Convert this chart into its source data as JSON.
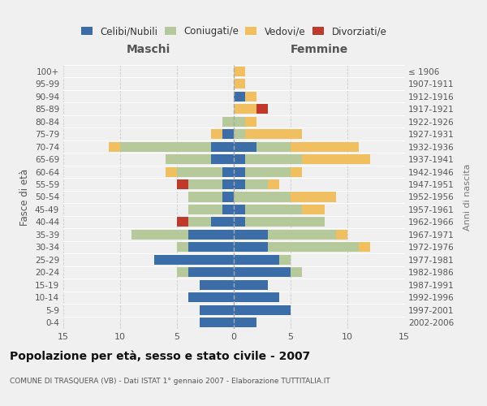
{
  "age_groups": [
    "0-4",
    "5-9",
    "10-14",
    "15-19",
    "20-24",
    "25-29",
    "30-34",
    "35-39",
    "40-44",
    "45-49",
    "50-54",
    "55-59",
    "60-64",
    "65-69",
    "70-74",
    "75-79",
    "80-84",
    "85-89",
    "90-94",
    "95-99",
    "100+"
  ],
  "birth_years": [
    "2002-2006",
    "1997-2001",
    "1992-1996",
    "1987-1991",
    "1982-1986",
    "1977-1981",
    "1972-1976",
    "1967-1971",
    "1962-1966",
    "1957-1961",
    "1952-1956",
    "1947-1951",
    "1942-1946",
    "1937-1941",
    "1932-1936",
    "1927-1931",
    "1922-1926",
    "1917-1921",
    "1912-1916",
    "1907-1911",
    "≤ 1906"
  ],
  "males": {
    "celibi": [
      3,
      3,
      4,
      3,
      4,
      7,
      4,
      4,
      2,
      1,
      1,
      1,
      1,
      2,
      2,
      1,
      0,
      0,
      0,
      0,
      0
    ],
    "coniugati": [
      0,
      0,
      0,
      0,
      1,
      0,
      1,
      5,
      2,
      3,
      3,
      3,
      4,
      4,
      8,
      0,
      1,
      0,
      0,
      0,
      0
    ],
    "vedovi": [
      0,
      0,
      0,
      0,
      0,
      0,
      0,
      0,
      0,
      0,
      0,
      0,
      1,
      0,
      1,
      1,
      0,
      0,
      0,
      0,
      0
    ],
    "divorziati": [
      0,
      0,
      0,
      0,
      0,
      0,
      0,
      0,
      1,
      0,
      0,
      1,
      0,
      0,
      0,
      0,
      0,
      0,
      0,
      0,
      0
    ]
  },
  "females": {
    "nubili": [
      2,
      5,
      4,
      3,
      5,
      4,
      3,
      3,
      1,
      1,
      0,
      1,
      1,
      1,
      2,
      0,
      0,
      0,
      1,
      0,
      0
    ],
    "coniugate": [
      0,
      0,
      0,
      0,
      1,
      1,
      8,
      6,
      7,
      5,
      5,
      2,
      4,
      5,
      3,
      1,
      1,
      0,
      0,
      0,
      0
    ],
    "vedove": [
      0,
      0,
      0,
      0,
      0,
      0,
      1,
      1,
      0,
      2,
      4,
      1,
      1,
      6,
      6,
      5,
      1,
      2,
      1,
      1,
      1
    ],
    "divorziate": [
      0,
      0,
      0,
      0,
      0,
      0,
      0,
      0,
      0,
      0,
      0,
      0,
      0,
      0,
      0,
      0,
      0,
      1,
      0,
      0,
      0
    ]
  },
  "colors": {
    "celibi_nubili": "#3b6ea8",
    "coniugati": "#b5c99a",
    "vedovi": "#f0c060",
    "divorziati": "#c0392b"
  },
  "xlim": 15,
  "title": "Popolazione per età, sesso e stato civile - 2007",
  "subtitle": "COMUNE DI TRASQUERA (VB) - Dati ISTAT 1° gennaio 2007 - Elaborazione TUTTITALIA.IT",
  "ylabel_left": "Fasce di età",
  "ylabel_right": "Anni di nascita",
  "xlabel_left": "Maschi",
  "xlabel_right": "Femmine",
  "bg_color": "#f0f0f0",
  "grid_color": "#cccccc"
}
